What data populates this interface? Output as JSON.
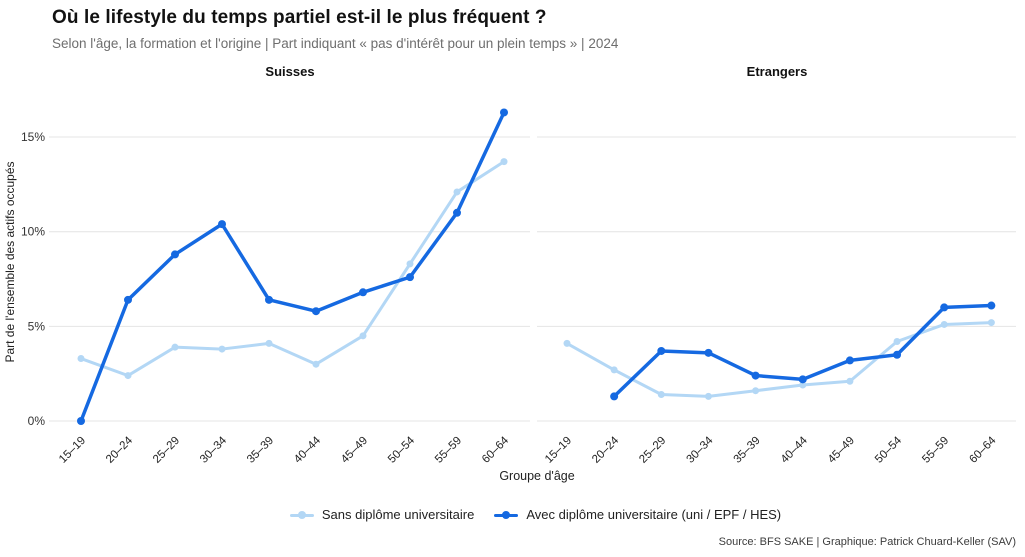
{
  "header": {
    "title": "Où le lifestyle du temps partiel est-il le plus fréquent ?",
    "subtitle": "Selon l'âge, la formation et l'origine | Part indiquant « pas d'intérêt pour un plein temps » | 2024"
  },
  "colors": {
    "sans_diplome": "#b3d7f5",
    "avec_diplome": "#1569e1",
    "gridline": "#e4e4e4"
  },
  "chart_data": {
    "type": "line",
    "title": "Où le lifestyle du temps partiel est-il le plus fréquent ?",
    "subtitle": "Selon l'âge, la formation et l'origine | Part indiquant « pas d'intérêt pour un plein temps » | 2024",
    "xlabel": "Groupe d'âge",
    "ylabel": "Part de l'ensemble des actifs occupés",
    "ylim": [
      0,
      17.5
    ],
    "grid": "horizontal",
    "legend_position": "bottom",
    "y_ticks": [
      "0%",
      "5%",
      "10%",
      "15%"
    ],
    "y_tick_values": [
      0,
      5,
      10,
      15
    ],
    "categories": [
      "15–19",
      "20–24",
      "25–29",
      "30–34",
      "35–39",
      "40–44",
      "45–49",
      "50–54",
      "55–59",
      "60–64"
    ],
    "panels": [
      {
        "title": "Suisses",
        "series": [
          {
            "name": "Sans diplôme universitaire",
            "color": "#b3d7f5",
            "values": [
              3.3,
              2.4,
              3.9,
              3.8,
              4.1,
              3.0,
              4.5,
              8.3,
              12.1,
              13.7
            ]
          },
          {
            "name": "Avec diplôme universitaire (uni / EPF / HES)",
            "color": "#1569e1",
            "values": [
              0.0,
              6.4,
              8.8,
              10.4,
              6.4,
              5.8,
              6.8,
              7.6,
              11.0,
              16.3
            ]
          }
        ]
      },
      {
        "title": "Etrangers",
        "series": [
          {
            "name": "Sans diplôme universitaire",
            "color": "#b3d7f5",
            "values": [
              4.1,
              2.7,
              1.4,
              1.3,
              1.6,
              1.9,
              2.1,
              4.2,
              5.1,
              5.2
            ]
          },
          {
            "name": "Avec diplôme universitaire (uni / EPF / HES)",
            "color": "#1569e1",
            "values": [
              null,
              1.3,
              3.7,
              3.6,
              2.4,
              2.2,
              3.2,
              3.5,
              6.0,
              6.1
            ]
          }
        ]
      }
    ]
  },
  "legend": {
    "items": [
      {
        "label": "Sans diplôme universitaire",
        "color": "#b3d7f5"
      },
      {
        "label": "Avec diplôme universitaire (uni / EPF / HES)",
        "color": "#1569e1"
      }
    ]
  },
  "footer": {
    "source": "Source: BFS SAKE | Graphique: Patrick Chuard-Keller (SAV)"
  }
}
